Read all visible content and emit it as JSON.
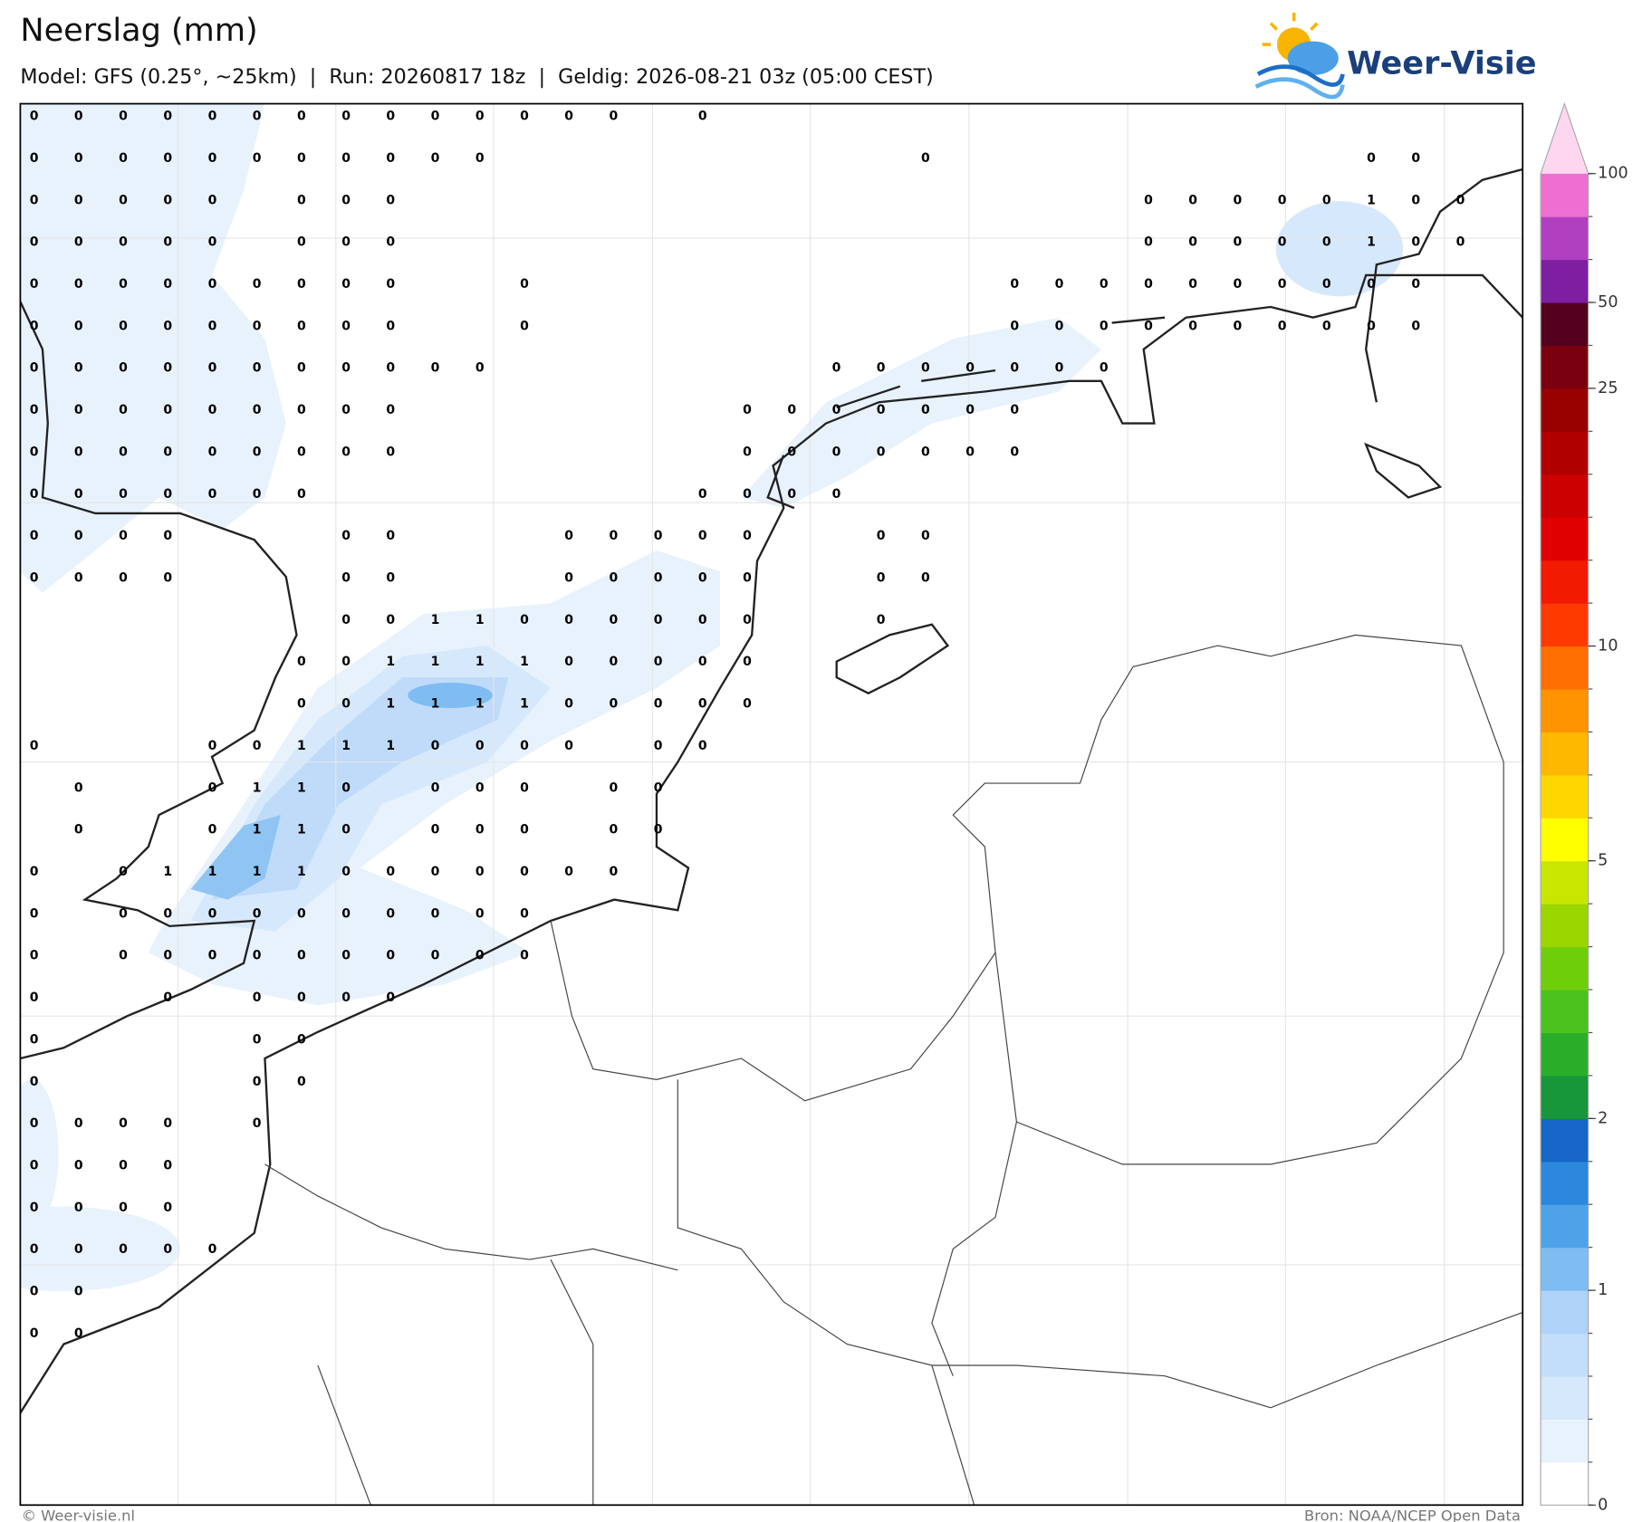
{
  "header": {
    "title": "Neerslag (mm)",
    "subtitle": "Model: GFS (0.25°, ~25km)  |  Run: 20260817 18z  |  Geldig: 2026-08-21 03z (05:00 CEST)"
  },
  "logo": {
    "text": "Weer-Visie"
  },
  "map": {
    "grid_values": [
      [
        0,
        0,
        0,
        0,
        0,
        0,
        0,
        0,
        0,
        0,
        0,
        0,
        0,
        0,
        null,
        0,
        null,
        null,
        null,
        null,
        null,
        null,
        null,
        null,
        null,
        null,
        null,
        null,
        null,
        null,
        null,
        null,
        null
      ],
      [
        0,
        0,
        0,
        0,
        0,
        0,
        0,
        0,
        0,
        0,
        0,
        null,
        null,
        null,
        null,
        null,
        null,
        null,
        null,
        null,
        0,
        null,
        null,
        null,
        null,
        null,
        null,
        null,
        null,
        null,
        0,
        0,
        null
      ],
      [
        0,
        0,
        0,
        0,
        0,
        null,
        0,
        0,
        0,
        null,
        null,
        null,
        null,
        null,
        null,
        null,
        null,
        null,
        null,
        null,
        null,
        null,
        null,
        null,
        null,
        0,
        0,
        0,
        0,
        0,
        1,
        0,
        0
      ],
      [
        0,
        0,
        0,
        0,
        0,
        null,
        0,
        0,
        0,
        null,
        null,
        null,
        null,
        null,
        null,
        null,
        null,
        null,
        null,
        null,
        null,
        null,
        null,
        null,
        null,
        0,
        0,
        0,
        0,
        0,
        1,
        0,
        0
      ],
      [
        0,
        0,
        0,
        0,
        0,
        0,
        0,
        0,
        0,
        null,
        null,
        0,
        null,
        null,
        null,
        null,
        null,
        null,
        null,
        null,
        null,
        null,
        0,
        0,
        0,
        0,
        0,
        0,
        0,
        0,
        0,
        0,
        null
      ],
      [
        0,
        0,
        0,
        0,
        0,
        0,
        0,
        0,
        0,
        null,
        null,
        0,
        null,
        null,
        null,
        null,
        null,
        null,
        null,
        null,
        null,
        null,
        0,
        0,
        0,
        0,
        0,
        0,
        0,
        0,
        0,
        0,
        null
      ],
      [
        0,
        0,
        0,
        0,
        0,
        0,
        0,
        0,
        0,
        0,
        0,
        null,
        null,
        null,
        null,
        null,
        null,
        null,
        0,
        0,
        0,
        0,
        0,
        0,
        0,
        null,
        null,
        null,
        null,
        null,
        null,
        null,
        null
      ],
      [
        0,
        0,
        0,
        0,
        0,
        0,
        0,
        0,
        0,
        null,
        null,
        null,
        null,
        null,
        null,
        null,
        0,
        0,
        0,
        0,
        0,
        0,
        0,
        null,
        null,
        null,
        null,
        null,
        null,
        null,
        null,
        null,
        null
      ],
      [
        0,
        0,
        0,
        0,
        0,
        0,
        0,
        0,
        0,
        null,
        null,
        null,
        null,
        null,
        null,
        null,
        0,
        0,
        0,
        0,
        0,
        0,
        0,
        null,
        null,
        null,
        null,
        null,
        null,
        null,
        null,
        null,
        null
      ],
      [
        0,
        0,
        0,
        0,
        0,
        0,
        0,
        null,
        null,
        null,
        null,
        null,
        null,
        null,
        null,
        0,
        0,
        0,
        0,
        null,
        null,
        null,
        null,
        null,
        null,
        null,
        null,
        null,
        null,
        null,
        null,
        null,
        null
      ],
      [
        0,
        0,
        0,
        0,
        null,
        null,
        null,
        0,
        0,
        null,
        null,
        null,
        0,
        0,
        0,
        0,
        0,
        null,
        null,
        0,
        0,
        null,
        null,
        null,
        null,
        null,
        null,
        null,
        null,
        null,
        null,
        null,
        null
      ],
      [
        0,
        0,
        0,
        0,
        null,
        null,
        null,
        0,
        0,
        null,
        null,
        null,
        0,
        0,
        0,
        0,
        0,
        null,
        null,
        0,
        0,
        null,
        null,
        null,
        null,
        null,
        null,
        null,
        null,
        null,
        null,
        null,
        null
      ],
      [
        null,
        null,
        null,
        null,
        null,
        null,
        null,
        0,
        0,
        1,
        1,
        0,
        0,
        0,
        0,
        0,
        0,
        null,
        null,
        0,
        null,
        null,
        null,
        null,
        null,
        null,
        null,
        null,
        null,
        null,
        null,
        null,
        null
      ],
      [
        null,
        null,
        null,
        null,
        null,
        null,
        0,
        0,
        1,
        1,
        1,
        1,
        0,
        0,
        0,
        0,
        0,
        null,
        null,
        null,
        null,
        null,
        null,
        null,
        null,
        null,
        null,
        null,
        null,
        null,
        null,
        null,
        null
      ],
      [
        null,
        null,
        null,
        null,
        null,
        null,
        0,
        0,
        1,
        1,
        1,
        1,
        0,
        0,
        0,
        0,
        0,
        null,
        null,
        null,
        null,
        null,
        null,
        null,
        null,
        null,
        null,
        null,
        null,
        null,
        null,
        null,
        null
      ],
      [
        0,
        null,
        null,
        null,
        0,
        0,
        1,
        1,
        1,
        0,
        0,
        0,
        0,
        null,
        0,
        0,
        null,
        null,
        null,
        null,
        null,
        null,
        null,
        null,
        null,
        null,
        null,
        null,
        null,
        null,
        null,
        null,
        null
      ],
      [
        null,
        0,
        null,
        null,
        0,
        1,
        1,
        0,
        null,
        0,
        0,
        0,
        null,
        0,
        0,
        null,
        null,
        null,
        null,
        null,
        null,
        null,
        null,
        null,
        null,
        null,
        null,
        null,
        null,
        null,
        null,
        null,
        null
      ],
      [
        null,
        0,
        null,
        null,
        0,
        1,
        1,
        0,
        null,
        0,
        0,
        0,
        null,
        0,
        0,
        null,
        null,
        null,
        null,
        null,
        null,
        null,
        null,
        null,
        null,
        null,
        null,
        null,
        null,
        null,
        null,
        null,
        null
      ],
      [
        0,
        null,
        0,
        1,
        1,
        1,
        1,
        0,
        0,
        0,
        0,
        0,
        0,
        0,
        null,
        null,
        null,
        null,
        null,
        null,
        null,
        null,
        null,
        null,
        null,
        null,
        null,
        null,
        null,
        null,
        null,
        null,
        null
      ],
      [
        0,
        null,
        0,
        0,
        0,
        0,
        0,
        0,
        0,
        0,
        0,
        0,
        null,
        null,
        null,
        null,
        null,
        null,
        null,
        null,
        null,
        null,
        null,
        null,
        null,
        null,
        null,
        null,
        null,
        null,
        null,
        null,
        null
      ],
      [
        0,
        null,
        0,
        0,
        0,
        0,
        0,
        0,
        0,
        0,
        0,
        0,
        null,
        null,
        null,
        null,
        null,
        null,
        null,
        null,
        null,
        null,
        null,
        null,
        null,
        null,
        null,
        null,
        null,
        null,
        null,
        null,
        null
      ],
      [
        0,
        null,
        null,
        0,
        null,
        0,
        0,
        0,
        0,
        null,
        null,
        null,
        null,
        null,
        null,
        null,
        null,
        null,
        null,
        null,
        null,
        null,
        null,
        null,
        null,
        null,
        null,
        null,
        null,
        null,
        null,
        null,
        null
      ],
      [
        0,
        null,
        null,
        null,
        null,
        0,
        0,
        null,
        null,
        null,
        null,
        null,
        null,
        null,
        null,
        null,
        null,
        null,
        null,
        null,
        null,
        null,
        null,
        null,
        null,
        null,
        null,
        null,
        null,
        null,
        null,
        null,
        null
      ],
      [
        0,
        null,
        null,
        null,
        null,
        0,
        0,
        null,
        null,
        null,
        null,
        null,
        null,
        null,
        null,
        null,
        null,
        null,
        null,
        null,
        null,
        null,
        null,
        null,
        null,
        null,
        null,
        null,
        null,
        null,
        null,
        null,
        null
      ],
      [
        0,
        0,
        0,
        0,
        null,
        0,
        null,
        null,
        null,
        null,
        null,
        null,
        null,
        null,
        null,
        null,
        null,
        null,
        null,
        null,
        null,
        null,
        null,
        null,
        null,
        null,
        null,
        null,
        null,
        null,
        null,
        null,
        null
      ],
      [
        0,
        0,
        0,
        0,
        null,
        null,
        null,
        null,
        null,
        null,
        null,
        null,
        null,
        null,
        null,
        null,
        null,
        null,
        null,
        null,
        null,
        null,
        null,
        null,
        null,
        null,
        null,
        null,
        null,
        null,
        null,
        null,
        null
      ],
      [
        0,
        0,
        0,
        0,
        null,
        null,
        null,
        null,
        null,
        null,
        null,
        null,
        null,
        null,
        null,
        null,
        null,
        null,
        null,
        null,
        null,
        null,
        null,
        null,
        null,
        null,
        null,
        null,
        null,
        null,
        null,
        null,
        null
      ],
      [
        0,
        0,
        0,
        0,
        0,
        null,
        null,
        null,
        null,
        null,
        null,
        null,
        null,
        null,
        null,
        null,
        null,
        null,
        null,
        null,
        null,
        null,
        null,
        null,
        null,
        null,
        null,
        null,
        null,
        null,
        null,
        null,
        null
      ],
      [
        0,
        0,
        null,
        null,
        null,
        null,
        null,
        null,
        null,
        null,
        null,
        null,
        null,
        null,
        null,
        null,
        null,
        null,
        null,
        null,
        null,
        null,
        null,
        null,
        null,
        null,
        null,
        null,
        null,
        null,
        null,
        null,
        null
      ],
      [
        0,
        0,
        null,
        null,
        null,
        null,
        null,
        null,
        null,
        null,
        null,
        null,
        null,
        null,
        null,
        null,
        null,
        null,
        null,
        null,
        null,
        null,
        null,
        null,
        null,
        null,
        null,
        null,
        null,
        null,
        null,
        null,
        null
      ]
    ]
  },
  "colorbar": {
    "levels": [
      0,
      0.1,
      0.2,
      0.5,
      0.8,
      1,
      1.2,
      1.5,
      1.8,
      2,
      2.5,
      3,
      3.5,
      4,
      4.5,
      5,
      6,
      7,
      8,
      9,
      10,
      12,
      14,
      16,
      18,
      20,
      25,
      35,
      50,
      65,
      80,
      100
    ],
    "colors": [
      "#ffffff",
      "#e8f2fd",
      "#d6e8fb",
      "#c2defa",
      "#aed2f8",
      "#7fbcf2",
      "#4ea3e8",
      "#2b88dc",
      "#1667c8",
      "#17963a",
      "#2aae2a",
      "#4cc21e",
      "#6fce0a",
      "#9bd600",
      "#c8e600",
      "#ffff00",
      "#ffd700",
      "#ffb800",
      "#ff9300",
      "#ff6e00",
      "#ff3a00",
      "#f21a00",
      "#e00000",
      "#cc0000",
      "#b00000",
      "#990000",
      "#7a0010",
      "#55001e",
      "#7d1fa0",
      "#b040c0",
      "#ee6fd0"
    ],
    "extend_color": "#ffd6f0",
    "ticks": [
      0,
      1,
      2,
      5,
      10,
      25,
      50,
      100
    ]
  },
  "footer": {
    "copyright": "© Weer-visie.nl",
    "source": "Bron: NOAA/NCEP Open Data"
  }
}
